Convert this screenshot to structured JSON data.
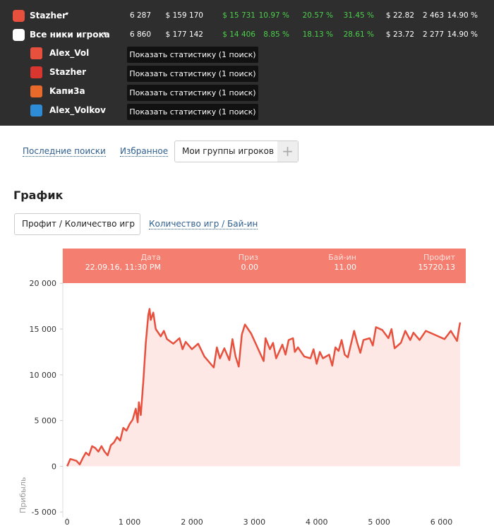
{
  "summary": {
    "rows": [
      {
        "name": "Stazher",
        "cells": [
          "6 287",
          "$ 159 170",
          "$ 15 731",
          "10.97 %",
          "20.57 %",
          "31.45 %",
          "$ 22.82",
          "2 463",
          "14.90 %"
        ]
      },
      {
        "name": "Все ники игрока",
        "cells": [
          "6 860",
          "$ 177 142",
          "$ 14 406",
          "8.85 %",
          "18.13 %",
          "28.61 %",
          "$ 23.72",
          "2 277",
          "14.90 %"
        ]
      }
    ]
  },
  "accounts": [
    {
      "name": "Alex_Vol",
      "button": "Показать статистику (1 поиск)",
      "color": "#e8503e"
    },
    {
      "name": "Stazher",
      "button": "Показать статистику (1 поиск)",
      "color": "#d9362f"
    },
    {
      "name": "Kапи3а",
      "button": "Показать статистику (1 поиск)",
      "color": "#e86a2a"
    },
    {
      "name": "Alex_Volkov",
      "button": "Показать статистику (1 поиск)",
      "color": "#2e8bd6"
    }
  ],
  "tabs": [
    "Последние поиски",
    "Избранное",
    "Мои группы игроков"
  ],
  "section_title": "График",
  "chart_tabs": [
    "Профит / Количество игр",
    "Количество игр / Бай-ин"
  ],
  "chart": {
    "type": "line",
    "y_label": "Прибыль",
    "color": "#e8503e",
    "fill": "#fde8e5",
    "xlim": [
      -70,
      6390
    ],
    "ylim": [
      -5600,
      23800
    ],
    "xticks": [
      0,
      {
        "value": 1000,
        "label": "1 000"
      },
      {
        "value": 2000,
        "label": "2 000"
      },
      {
        "value": 3000,
        "label": "3 000"
      },
      {
        "value": 4000,
        "label": "4 000"
      },
      {
        "value": 5000,
        "label": "5 000"
      },
      {
        "value": 6000,
        "label": "6 000"
      }
    ],
    "yticks": [
      {
        "value": -5000,
        "label": "-5 000"
      },
      0,
      {
        "value": 5000,
        "label": "5 000"
      },
      {
        "value": 10000,
        "label": "10 000"
      },
      {
        "value": 15000,
        "label": "15 000"
      },
      {
        "value": 20000,
        "label": "20 000"
      }
    ],
    "x": [
      0,
      50,
      150,
      200,
      250,
      300,
      350,
      400,
      450,
      500,
      550,
      600,
      650,
      700,
      750,
      800,
      850,
      900,
      950,
      1000,
      1050,
      1100,
      1130,
      1150,
      1180,
      1220,
      1260,
      1300,
      1320,
      1340,
      1380,
      1420,
      1500,
      1550,
      1600,
      1700,
      1800,
      1850,
      1900,
      2000,
      2100,
      2200,
      2350,
      2400,
      2450,
      2520,
      2600,
      2650,
      2700,
      2750,
      2800,
      2850,
      2950,
      3050,
      3150,
      3180,
      3250,
      3300,
      3350,
      3450,
      3500,
      3550,
      3620,
      3650,
      3700,
      3800,
      3900,
      3950,
      4000,
      4050,
      4100,
      4200,
      4250,
      4300,
      4350,
      4400,
      4450,
      4500,
      4600,
      4650,
      4700,
      4750,
      4850,
      4900,
      4950,
      5050,
      5150,
      5200,
      5250,
      5350,
      5420,
      5500,
      5550,
      5650,
      5750,
      5850,
      5950,
      6050,
      6150,
      6250,
      6280,
      6300
    ],
    "y": [
      0,
      800,
      600,
      200,
      900,
      1500,
      1200,
      2200,
      2000,
      1600,
      2200,
      1600,
      1200,
      2300,
      2600,
      3200,
      2800,
      4200,
      3900,
      4600,
      5100,
      6300,
      4800,
      7000,
      5600,
      9200,
      13500,
      16500,
      17200,
      16000,
      16800,
      15000,
      14200,
      14800,
      13900,
      13400,
      14000,
      12800,
      13600,
      12800,
      13400,
      12000,
      10800,
      13000,
      11800,
      12900,
      11600,
      13900,
      12000,
      10900,
      14400,
      15500,
      14500,
      13000,
      11500,
      14000,
      12800,
      13500,
      11800,
      13300,
      12200,
      13800,
      14000,
      12500,
      13000,
      12000,
      11800,
      12800,
      11200,
      12500,
      11800,
      12200,
      11000,
      13000,
      12600,
      13800,
      12200,
      11900,
      14800,
      13500,
      12400,
      13800,
      14000,
      13200,
      15200,
      14900,
      14000,
      15000,
      12900,
      13500,
      14800,
      13800,
      14600,
      13800,
      14800,
      14500,
      14200,
      13900,
      14800,
      13700,
      15000,
      15720
    ],
    "tooltip": [
      {
        "label": "Дата",
        "value": "22.09.16, 11:30 PM"
      },
      {
        "label": "Приз",
        "value": "0.00"
      },
      {
        "label": "Бай-ин",
        "value": "11.00"
      },
      {
        "label": "Профит",
        "value": "15720.13"
      }
    ]
  }
}
